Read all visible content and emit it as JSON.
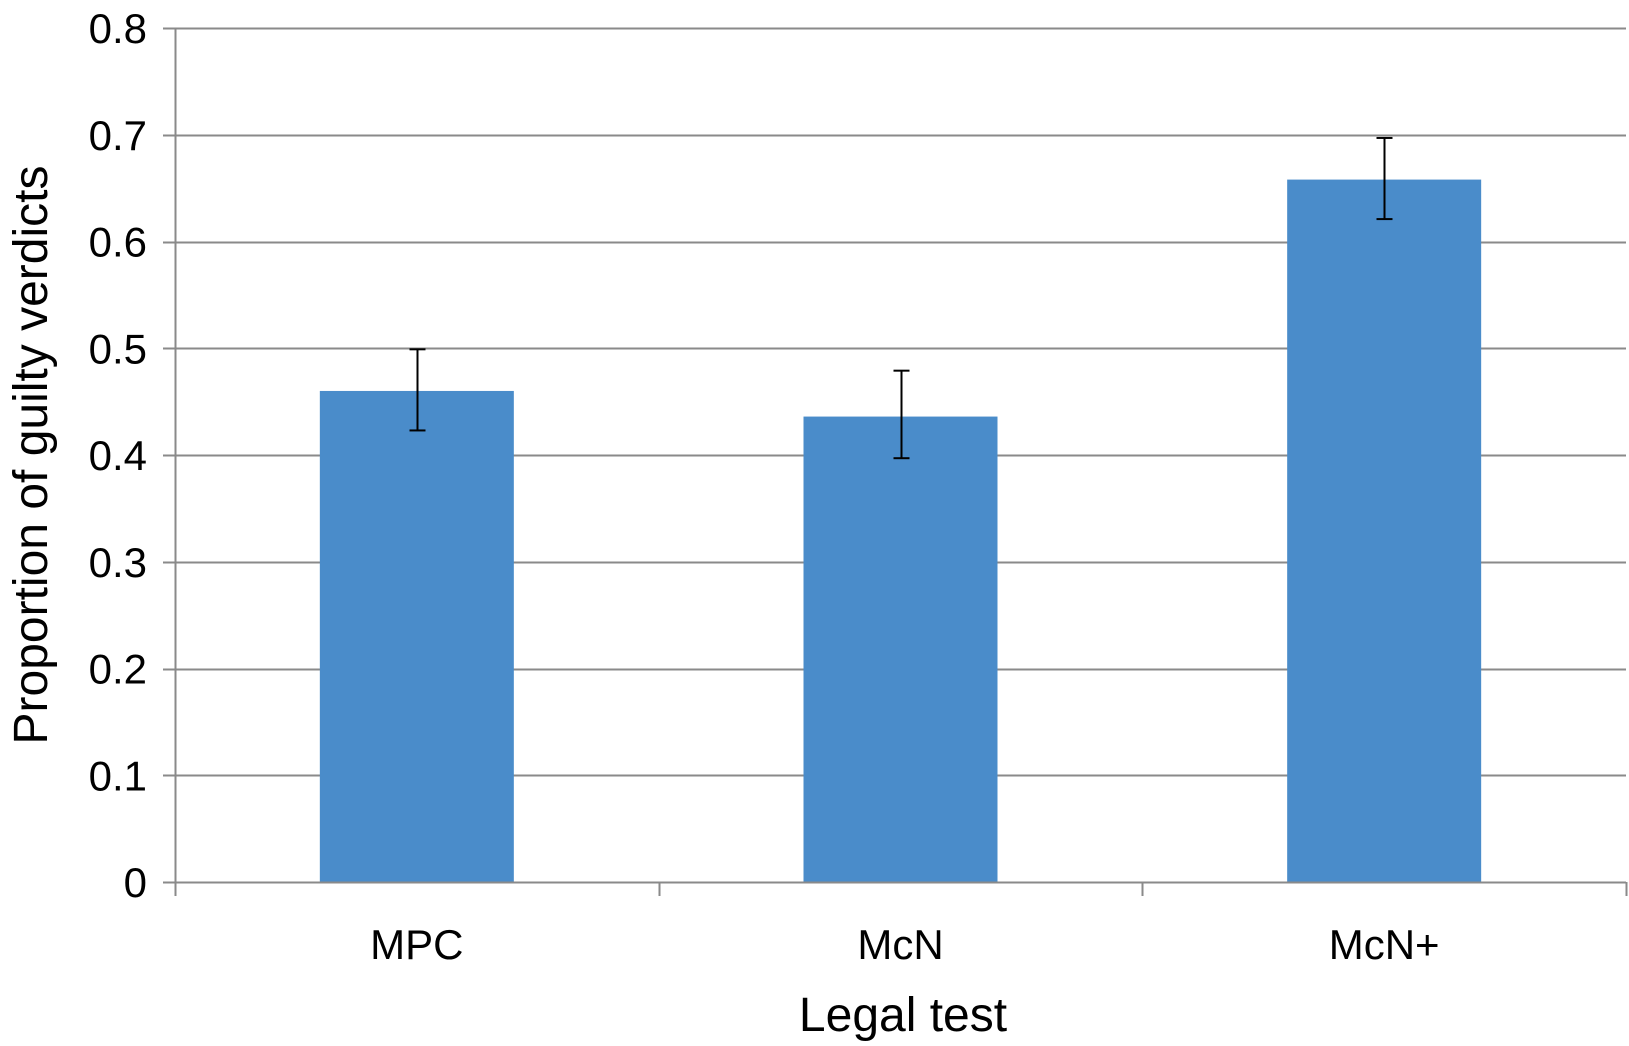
{
  "chart_data": {
    "type": "bar",
    "title": "",
    "xlabel": "Legal test",
    "ylabel": "Proportion of guilty verdicts",
    "categories": [
      "MPC",
      "McN",
      "McN+"
    ],
    "values": [
      0.46,
      0.436,
      0.658
    ],
    "error_low": [
      0.423,
      0.397,
      0.621
    ],
    "error_high": [
      0.499,
      0.479,
      0.697
    ],
    "ylim": [
      0,
      0.8
    ],
    "yticks": [
      0,
      0.1,
      0.2,
      0.3,
      0.4,
      0.5,
      0.6,
      0.7,
      0.8
    ],
    "ytick_labels": [
      "0",
      "0.1",
      "0.2",
      "0.3",
      "0.4",
      "0.5",
      "0.6",
      "0.7",
      "0.8"
    ],
    "grid": true,
    "legend": "none",
    "colors": {
      "bar": "#4a8cca",
      "grid": "#8a8a8a",
      "axis": "#8a8a8a",
      "error_bar": "#000000",
      "text": "#000000"
    }
  }
}
